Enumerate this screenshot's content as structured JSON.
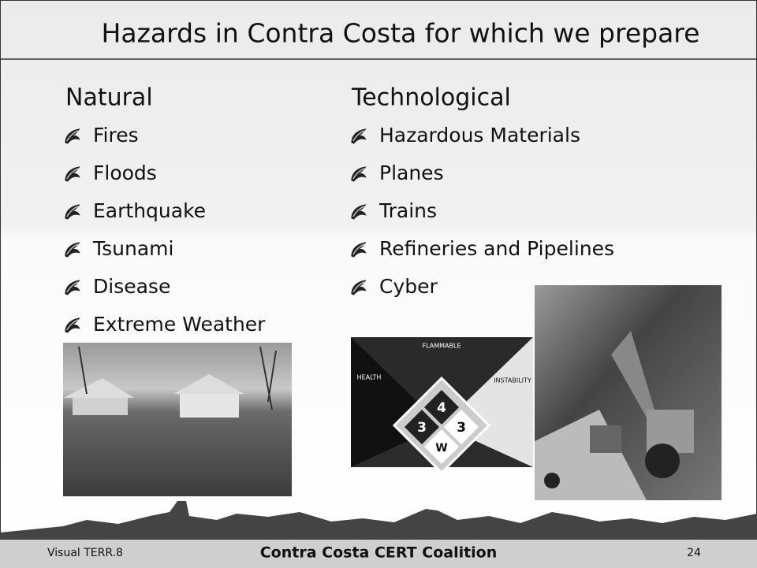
{
  "header": {
    "title": "Hazards in Contra Costa for which we prepare"
  },
  "columns": [
    {
      "heading": "Natural",
      "items": [
        "Fires",
        "Floods",
        "Earthquake",
        "Tsunami",
        "Disease",
        "Extreme Weather"
      ]
    },
    {
      "heading": "Technological",
      "items": [
        "Hazardous Materials",
        "Planes",
        "Trains",
        "Refineries and Pipelines",
        "Cyber"
      ]
    }
  ],
  "hazard_diamond": {
    "top": "FLAMMABLE",
    "left": "HEALTH",
    "right": "INSTABILITY",
    "ratings": [
      "4",
      "3",
      "3",
      "W"
    ]
  },
  "footer": {
    "left": "Visual TERR.8",
    "center": "Contra Costa CERT Coalition",
    "page": "24"
  }
}
